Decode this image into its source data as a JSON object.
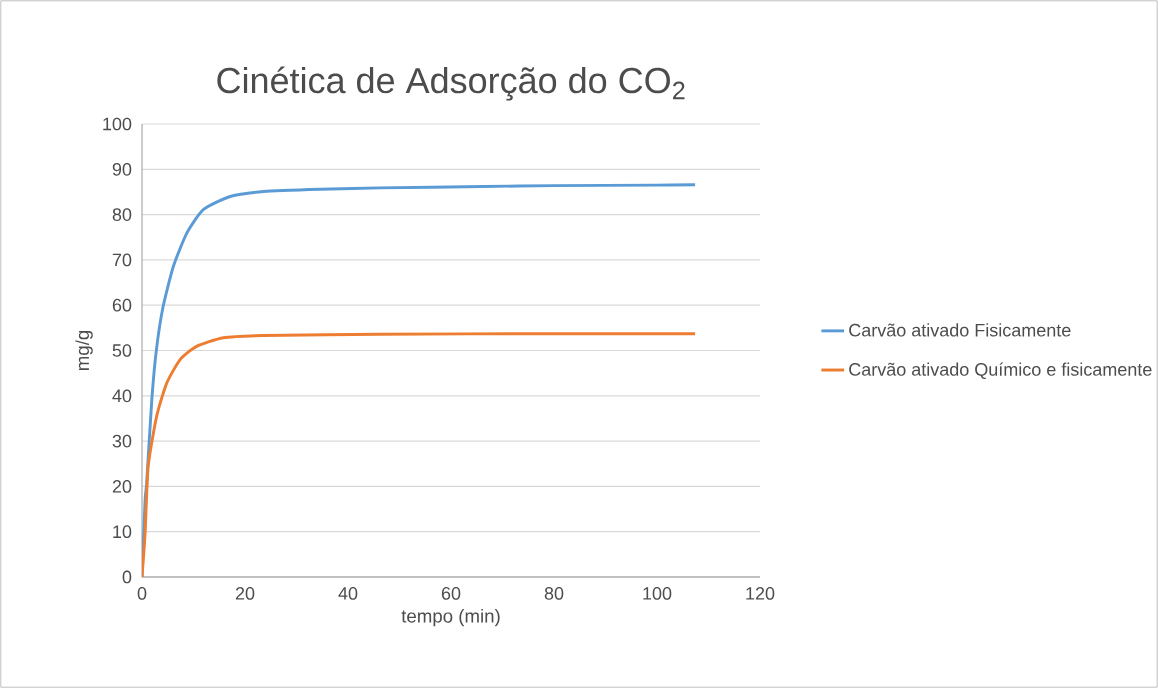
{
  "chart_data": {
    "type": "line",
    "title": "Cinética de Adsorção do CO$_{2}$",
    "xlabel": "tempo (min)",
    "ylabel": "mg/g",
    "xlim": [
      0,
      120
    ],
    "xticks": [
      0,
      20,
      40,
      60,
      80,
      100,
      120
    ],
    "ylim": [
      0,
      100
    ],
    "yticks": [
      0,
      10,
      20,
      30,
      40,
      50,
      60,
      70,
      80,
      90,
      100
    ],
    "grid": "y",
    "legend": "right",
    "marker": "none",
    "line_style": "solid",
    "series": [
      {
        "name": "Carvão ativado Fisicamente",
        "color": "#5b9bd5",
        "x": [
          0,
          0.6,
          0.9,
          1.9,
          2.8,
          4.1,
          6.1,
          8.7,
          11.9,
          17.1,
          23.6,
          34.6,
          46.2,
          66.3,
          80,
          100,
          107.4
        ],
        "values": [
          0,
          17,
          20.7,
          39.1,
          50.2,
          59.7,
          68.6,
          75.9,
          81.1,
          84.0,
          85.1,
          85.6,
          85.9,
          86.2,
          86.4,
          86.5,
          86.6
        ]
      },
      {
        "name": "Carvão ativado Químico e fisicamente",
        "color": "#ed7d31",
        "x": [
          0,
          0.6,
          1.2,
          2.85,
          4.8,
          7.4,
          10.6,
          15.8,
          23.6,
          46.2,
          80,
          107.4
        ],
        "values": [
          0,
          9.7,
          24.4,
          35.5,
          42.8,
          48.0,
          50.9,
          52.8,
          53.3,
          53.6,
          53.7,
          53.7
        ]
      }
    ]
  }
}
